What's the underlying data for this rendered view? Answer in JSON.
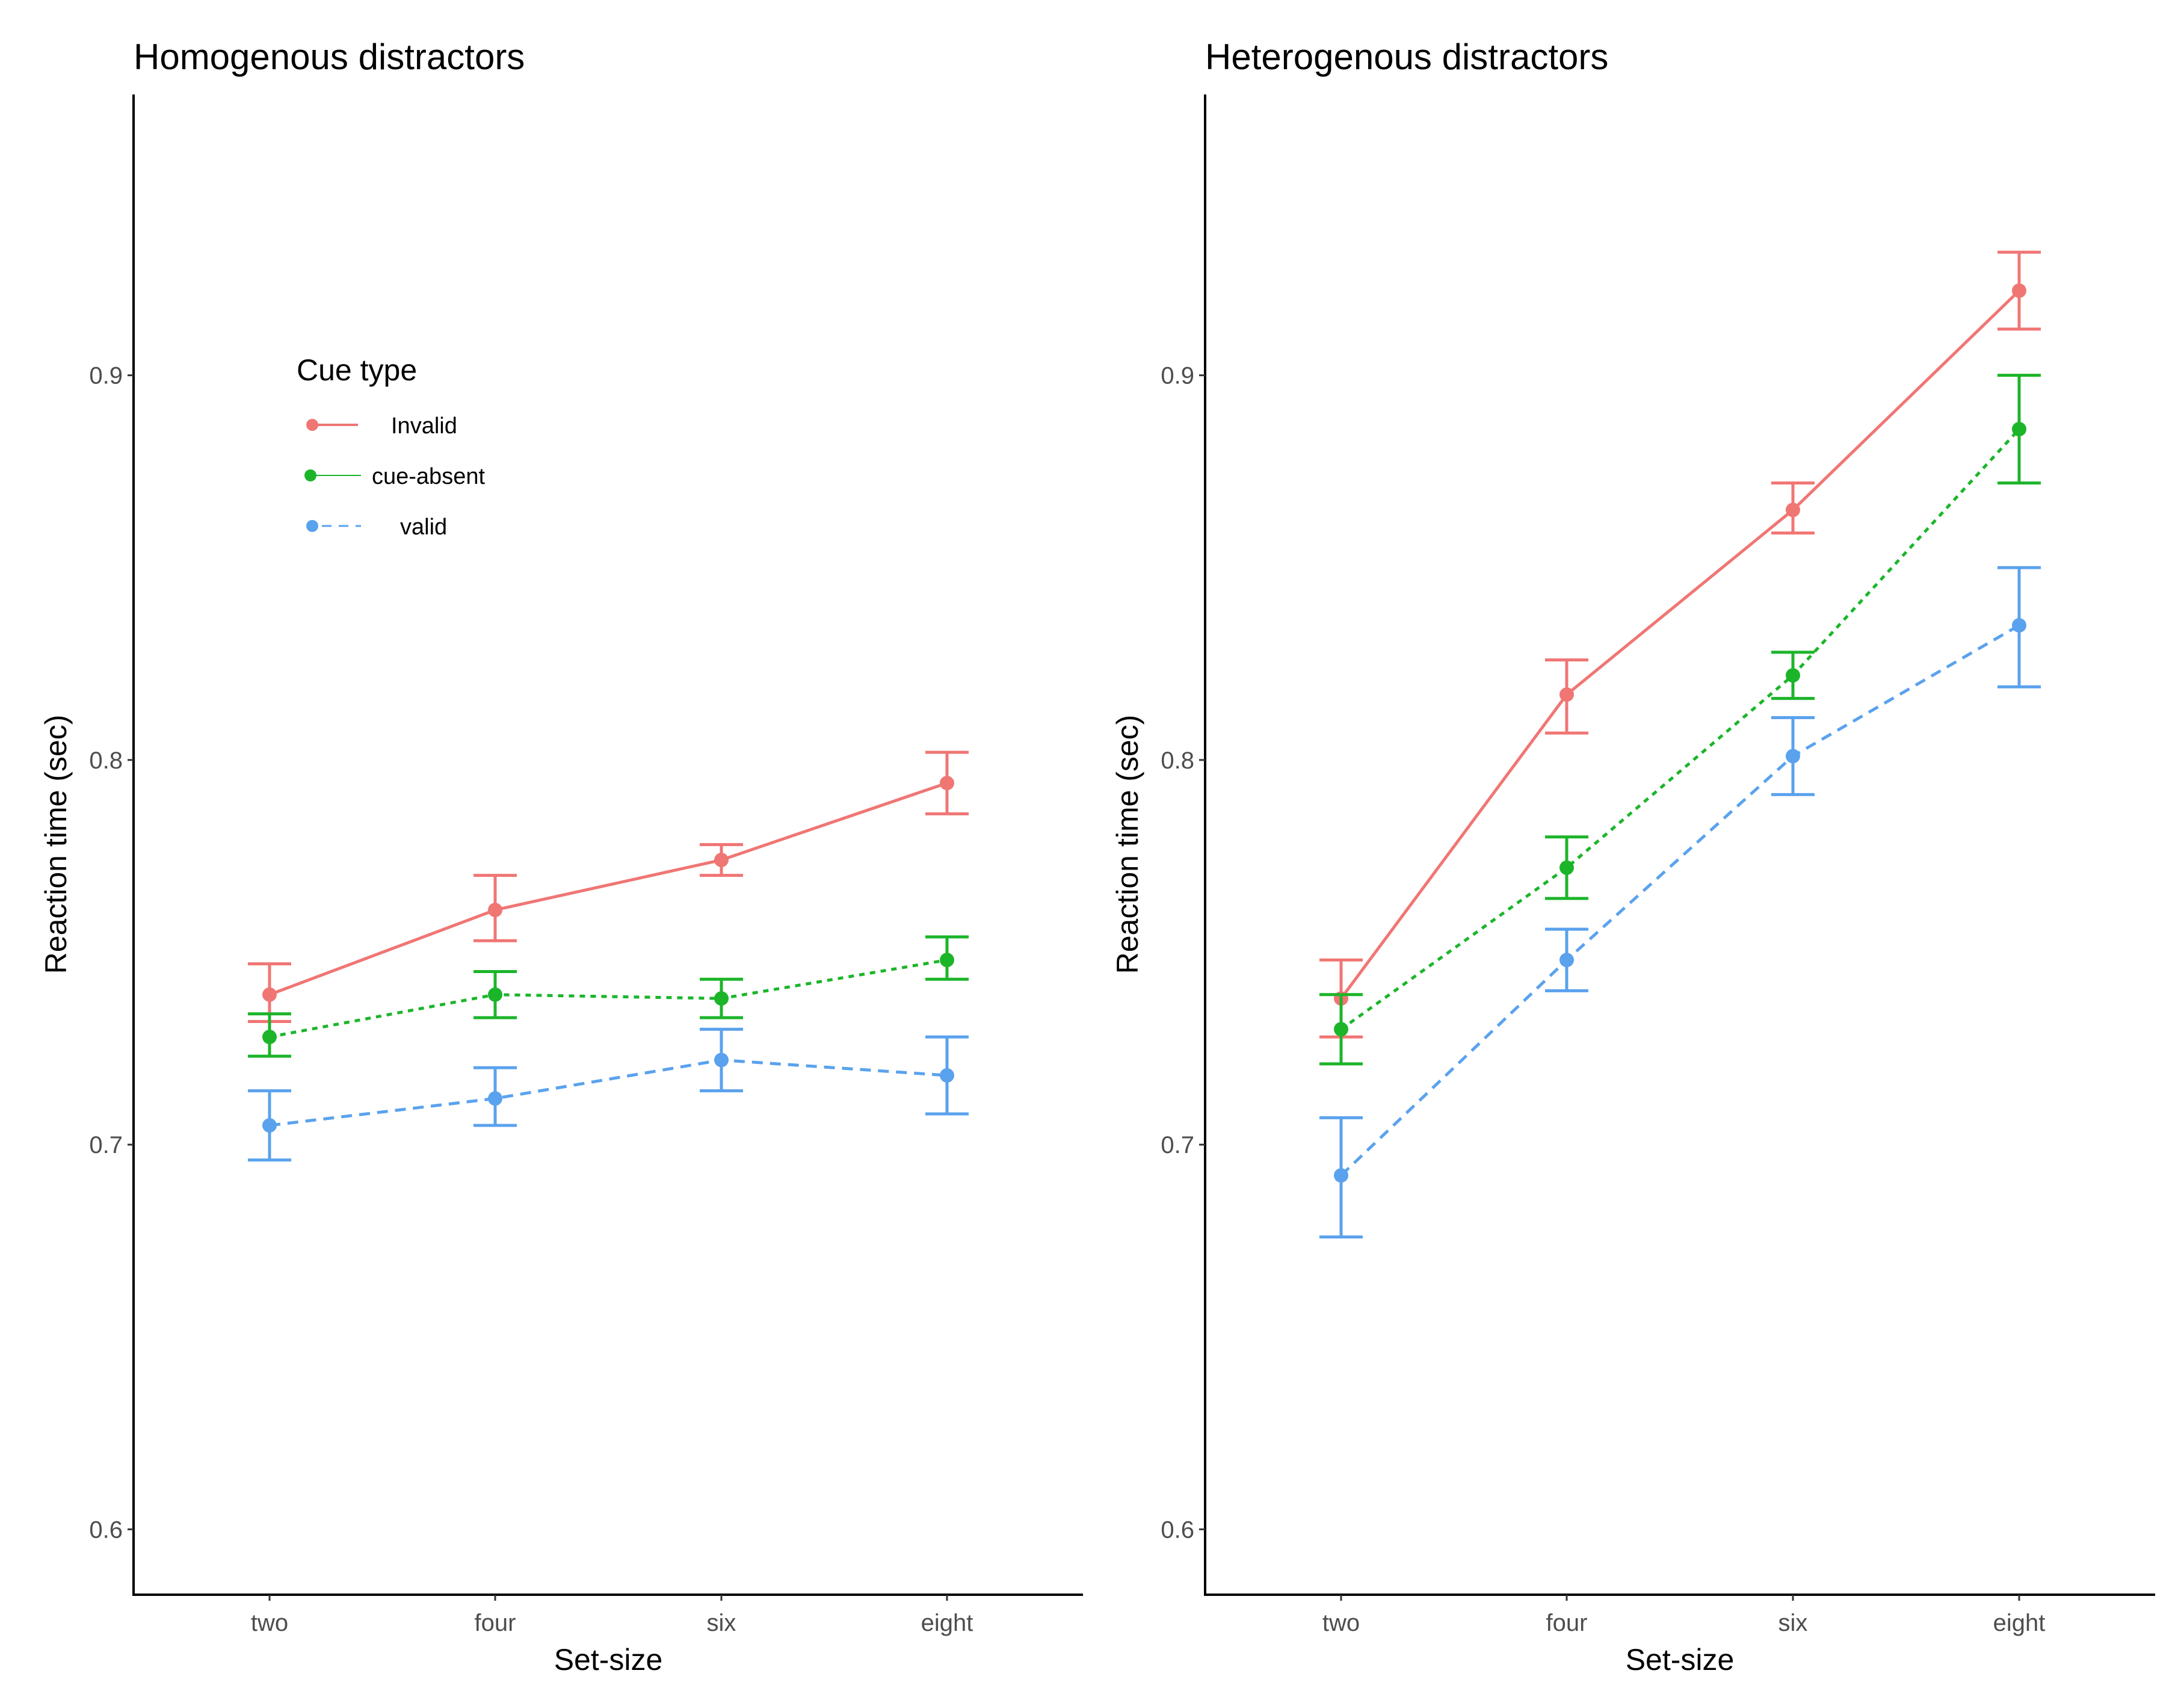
{
  "figure": {
    "legend": {
      "title": "Cue type",
      "entries": [
        "Invalid",
        "cue-absent",
        "valid"
      ]
    }
  },
  "colors": {
    "Invalid": "#f07674",
    "cue-absent": "#1cb52a",
    "valid": "#5aa2ee"
  },
  "chart_data": [
    {
      "type": "line",
      "title": "Homogenous distractors",
      "xlabel": "Set-size",
      "ylabel": "Reaction time (sec)",
      "categories": [
        "two",
        "four",
        "six",
        "eight"
      ],
      "ylim": [
        0.583,
        0.973
      ],
      "yticks": [
        0.6,
        0.7,
        0.8,
        0.9
      ],
      "ytick_labels": [
        "0.6",
        "0.7",
        "0.8",
        "0.9"
      ],
      "series": [
        {
          "name": "Invalid",
          "linestyle": "solid",
          "values": [
            0.739,
            0.761,
            0.774,
            0.794
          ],
          "lower": [
            0.732,
            0.753,
            0.77,
            0.786
          ],
          "upper": [
            0.747,
            0.77,
            0.778,
            0.802
          ]
        },
        {
          "name": "cue-absent",
          "linestyle": "dotted",
          "values": [
            0.728,
            0.739,
            0.738,
            0.748
          ],
          "lower": [
            0.723,
            0.733,
            0.733,
            0.743
          ],
          "upper": [
            0.734,
            0.745,
            0.743,
            0.754
          ]
        },
        {
          "name": "valid",
          "linestyle": "dashed",
          "values": [
            0.705,
            0.712,
            0.722,
            0.718
          ],
          "lower": [
            0.696,
            0.705,
            0.714,
            0.708
          ],
          "upper": [
            0.714,
            0.72,
            0.73,
            0.728
          ]
        }
      ]
    },
    {
      "type": "line",
      "title": "Heterogenous distractors",
      "xlabel": "Set-size",
      "ylabel": "Reaction time (sec)",
      "categories": [
        "two",
        "four",
        "six",
        "eight"
      ],
      "ylim": [
        0.583,
        0.973
      ],
      "yticks": [
        0.6,
        0.7,
        0.8,
        0.9
      ],
      "ytick_labels": [
        "0.6",
        "0.7",
        "0.8",
        "0.9"
      ],
      "series": [
        {
          "name": "Invalid",
          "linestyle": "solid",
          "values": [
            0.738,
            0.817,
            0.865,
            0.922
          ],
          "lower": [
            0.728,
            0.807,
            0.859,
            0.912
          ],
          "upper": [
            0.748,
            0.826,
            0.872,
            0.932
          ]
        },
        {
          "name": "cue-absent",
          "linestyle": "dotted",
          "values": [
            0.73,
            0.772,
            0.822,
            0.886
          ],
          "lower": [
            0.721,
            0.764,
            0.816,
            0.872
          ],
          "upper": [
            0.739,
            0.78,
            0.828,
            0.9
          ]
        },
        {
          "name": "valid",
          "linestyle": "dashed",
          "values": [
            0.692,
            0.748,
            0.801,
            0.835
          ],
          "lower": [
            0.676,
            0.74,
            0.791,
            0.819
          ],
          "upper": [
            0.707,
            0.756,
            0.811,
            0.85
          ]
        }
      ]
    }
  ]
}
